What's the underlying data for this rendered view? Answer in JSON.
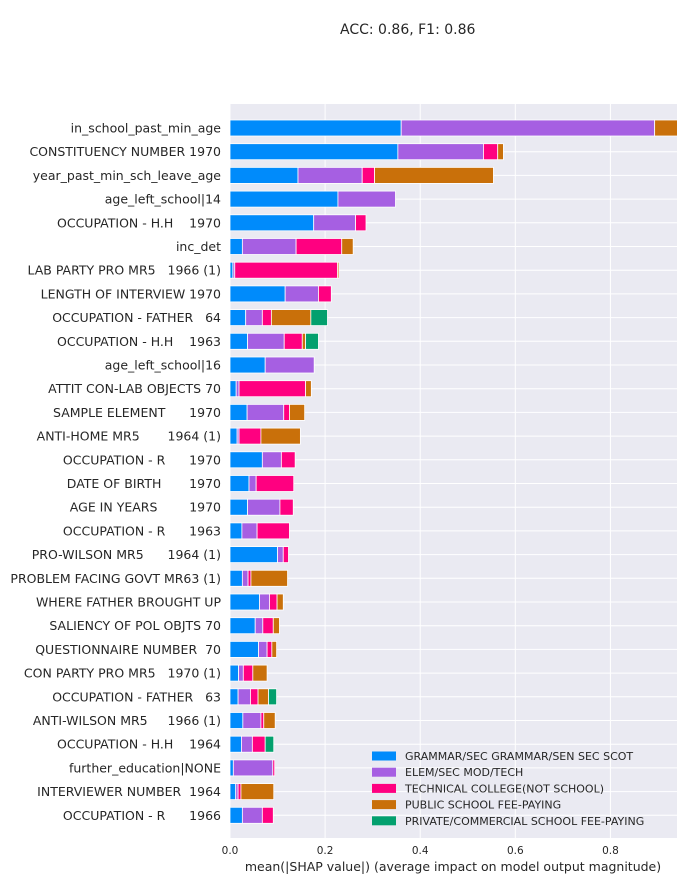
{
  "chart_data": {
    "type": "bar",
    "orientation": "horizontal",
    "stacked": true,
    "title": "ACC: 0.86, F1: 0.86",
    "xlabel": "mean(|SHAP value|) (average impact on model output magnitude)",
    "ylabel": "",
    "xlim": [
      0,
      0.94
    ],
    "xticks": [
      "0.0",
      "0.2",
      "0.4",
      "0.6",
      "0.8"
    ],
    "xtick_values": [
      0,
      0.2,
      0.4,
      0.6,
      0.8
    ],
    "grid": true,
    "legend_position": "bottom-right",
    "categories": [
      "in_school_past_min_age",
      "CONSTITUENCY NUMBER 1970",
      "year_past_min_sch_leave_age",
      "age_left_school|14",
      "OCCUPATION - H.H    1970",
      "inc_det",
      "LAB PARTY PRO MR5   1966 (1)",
      "LENGTH OF INTERVIEW 1970",
      "OCCUPATION - FATHER   64",
      "OCCUPATION - H.H    1963",
      "age_left_school|16",
      "ATTIT CON-LAB OBJECTS 70",
      "SAMPLE ELEMENT      1970",
      "ANTI-HOME MR5       1964 (1)",
      "OCCUPATION - R      1970",
      "DATE OF BIRTH       1970",
      "AGE IN YEARS        1970",
      "OCCUPATION - R      1963",
      "PRO-WILSON MR5      1964 (1)",
      "PROBLEM FACING GOVT MR63 (1)",
      "WHERE FATHER BROUGHT UP",
      "SALIENCY OF POL OBJTS 70",
      "QUESTIONNAIRE NUMBER  70",
      "CON PARTY PRO MR5   1970 (1)",
      "OCCUPATION - FATHER   63",
      "ANTI-WILSON MR5     1966 (1)",
      "OCCUPATION - H.H    1964",
      "further_education|NONE",
      "INTERVIEWER NUMBER  1964",
      "OCCUPATION - R      1966"
    ],
    "series": [
      {
        "name": "GRAMMAR/SEC GRAMMAR/SEN SEC SCOT",
        "color": "#008bfb",
        "values": [
          0.36,
          0.353,
          0.143,
          0.227,
          0.176,
          0.026,
          0.006,
          0.116,
          0.033,
          0.037,
          0.074,
          0.013,
          0.036,
          0.015,
          0.068,
          0.04,
          0.037,
          0.025,
          0.1,
          0.026,
          0.062,
          0.053,
          0.06,
          0.018,
          0.017,
          0.027,
          0.024,
          0.007,
          0.012,
          0.026
        ]
      },
      {
        "name": "ELEM/SEC MOD/TECH",
        "color": "#a65fe2",
        "values": [
          0.533,
          0.18,
          0.135,
          0.121,
          0.088,
          0.113,
          0.004,
          0.07,
          0.035,
          0.077,
          0.103,
          0.006,
          0.077,
          0.004,
          0.04,
          0.015,
          0.068,
          0.032,
          0.012,
          0.012,
          0.021,
          0.016,
          0.018,
          0.01,
          0.026,
          0.038,
          0.023,
          0.083,
          0.005,
          0.042
        ]
      },
      {
        "name": "TECHNICAL COLLEGE(NOT SCHOOL)",
        "color": "#ff0080",
        "values": [
          0.0,
          0.03,
          0.026,
          0.0,
          0.022,
          0.096,
          0.216,
          0.027,
          0.019,
          0.038,
          0.0,
          0.14,
          0.012,
          0.046,
          0.029,
          0.079,
          0.028,
          0.068,
          0.011,
          0.006,
          0.016,
          0.022,
          0.01,
          0.02,
          0.016,
          0.006,
          0.027,
          0.004,
          0.006,
          0.023
        ]
      },
      {
        "name": "PUBLIC SCHOOL FEE-PAYING",
        "color": "#c9700a",
        "values": [
          0.05,
          0.012,
          0.25,
          0.0,
          0.0,
          0.024,
          0.003,
          0.0,
          0.083,
          0.007,
          0.0,
          0.012,
          0.032,
          0.083,
          0.0,
          0.0,
          0.0,
          0.0,
          0.0,
          0.077,
          0.013,
          0.013,
          0.01,
          0.03,
          0.022,
          0.024,
          0.0,
          0.0,
          0.069,
          0.0
        ]
      },
      {
        "name": "PRIVATE/COMMERCIAL SCHOOL FEE-PAYING",
        "color": "#03a06e",
        "values": [
          0.0,
          0.0,
          0.0,
          0.0,
          0.0,
          0.0,
          0.0,
          0.0,
          0.035,
          0.027,
          0.0,
          0.0,
          0.0,
          0.0,
          0.0,
          0.0,
          0.0,
          0.0,
          0.0,
          0.0,
          0.0,
          0.0,
          0.0,
          0.0,
          0.017,
          0.0,
          0.018,
          0.0,
          0.0,
          0.0
        ]
      }
    ]
  }
}
